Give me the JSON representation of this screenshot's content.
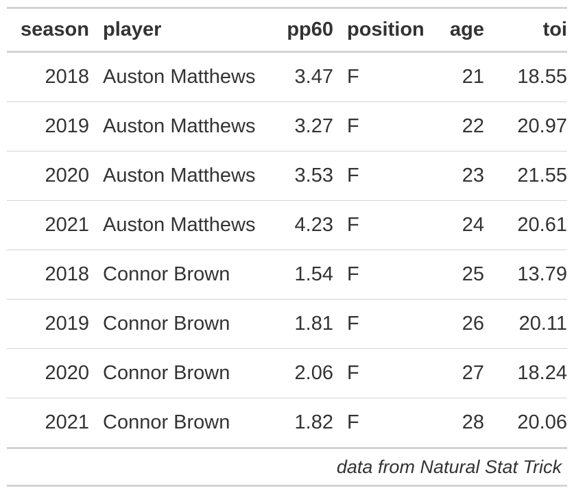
{
  "table": {
    "columns": [
      "season",
      "player",
      "pp60",
      "position",
      "age",
      "toi"
    ],
    "rows": [
      {
        "season": "2018",
        "player": "Auston Matthews",
        "pp60": "3.47",
        "position": "F",
        "age": "21",
        "toi": "18.55"
      },
      {
        "season": "2019",
        "player": "Auston Matthews",
        "pp60": "3.27",
        "position": "F",
        "age": "22",
        "toi": "20.97"
      },
      {
        "season": "2020",
        "player": "Auston Matthews",
        "pp60": "3.53",
        "position": "F",
        "age": "23",
        "toi": "21.55"
      },
      {
        "season": "2021",
        "player": "Auston Matthews",
        "pp60": "4.23",
        "position": "F",
        "age": "24",
        "toi": "20.61"
      },
      {
        "season": "2018",
        "player": "Connor Brown",
        "pp60": "1.54",
        "position": "F",
        "age": "25",
        "toi": "13.79"
      },
      {
        "season": "2019",
        "player": "Connor Brown",
        "pp60": "1.81",
        "position": "F",
        "age": "26",
        "toi": "20.11"
      },
      {
        "season": "2020",
        "player": "Connor Brown",
        "pp60": "2.06",
        "position": "F",
        "age": "27",
        "toi": "18.24"
      },
      {
        "season": "2021",
        "player": "Connor Brown",
        "pp60": "1.82",
        "position": "F",
        "age": "28",
        "toi": "20.06"
      }
    ],
    "source_note": "data from Natural Stat Trick"
  },
  "colors": {
    "text": "#333333",
    "rule": "#d3d3d3",
    "background": "#ffffff"
  }
}
